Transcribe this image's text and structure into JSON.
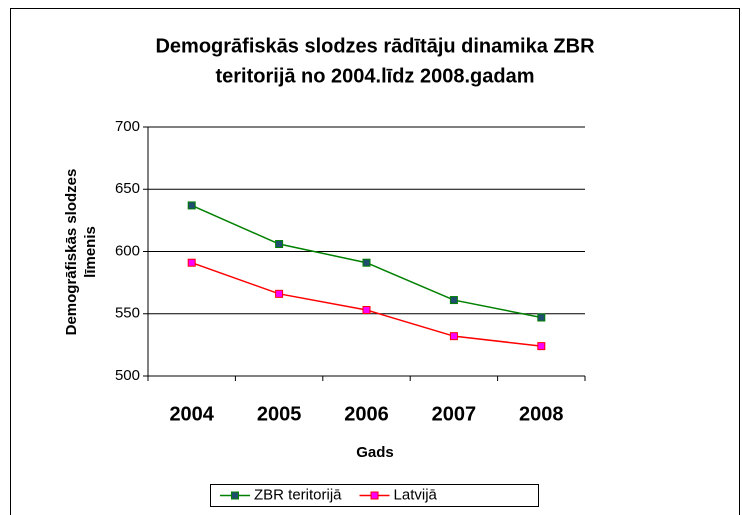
{
  "chart_data": {
    "type": "line",
    "title": [
      "Demogrāfiskās slodzes rādītāju dinamika ZBR",
      "teritorijā no 2004.līdz 2008.gadam"
    ],
    "xlabel": "Gads",
    "ylabel": [
      "Demogrāfiskās slodzes",
      "līmenis"
    ],
    "categories": [
      "2004",
      "2005",
      "2006",
      "2007",
      "2008"
    ],
    "series": [
      {
        "name": "ZBR teritorijā",
        "color": "#008000",
        "marker_color": "#1f4e6e",
        "values": [
          637,
          606,
          591,
          561,
          547
        ]
      },
      {
        "name": "Latvijā",
        "color": "#ff0000",
        "marker_color": "#ff00ff",
        "values": [
          591,
          566,
          553,
          532,
          524
        ]
      }
    ],
    "ylim": [
      500,
      700
    ],
    "yticks": [
      500,
      550,
      600,
      650,
      700
    ],
    "grid": true,
    "legend": "bottom"
  }
}
